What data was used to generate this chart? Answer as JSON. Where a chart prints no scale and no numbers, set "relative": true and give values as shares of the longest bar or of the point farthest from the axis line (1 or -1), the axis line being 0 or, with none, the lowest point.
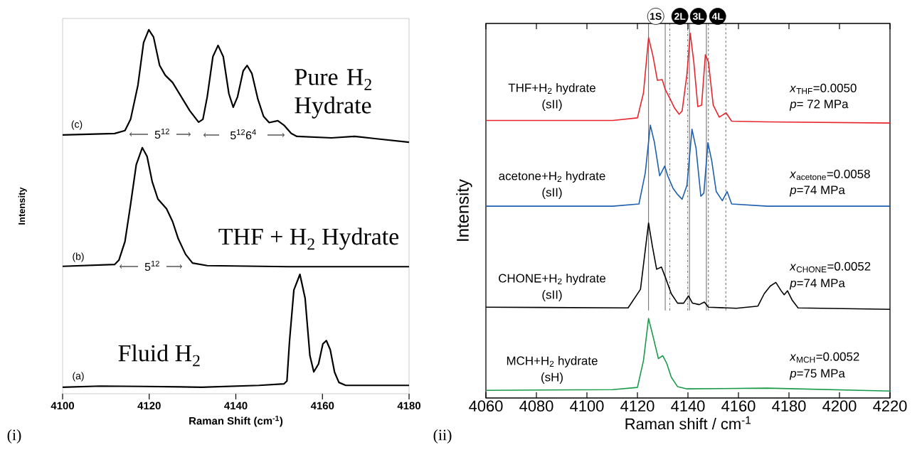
{
  "chart_data": [
    {
      "type": "line",
      "relative": true,
      "xlim": [
        4100,
        4180
      ],
      "xticks": [
        4100,
        4120,
        4140,
        4160,
        4180
      ],
      "xlabel": "Raman Shift (cm$^{-1}$)",
      "ylabel": "Intensity",
      "series": [
        {
          "name": "Pure H$_{2}$ Hydrate",
          "color": "#000000",
          "x": [
            4100,
            4112.0,
            4114.4,
            4115.7,
            4117.4,
            4118.7,
            4119.9,
            4121.0,
            4122.4,
            4123.7,
            4125.4,
            4127.4,
            4129.4,
            4131.4,
            4132.4,
            4133.4,
            4134.7,
            4135.9,
            4137.1,
            4138.4,
            4139.4,
            4140.4,
            4141.7,
            4142.6,
            4143.7,
            4145.1,
            4146.4,
            4147.7,
            4149.7,
            4151.1,
            4152.8,
            4154.1,
            4162.1,
            4167.4,
            4172.1,
            4180
          ],
          "values": [
            0.711,
            0.715,
            0.723,
            0.754,
            0.848,
            0.965,
            1.0,
            0.98,
            0.902,
            0.875,
            0.855,
            0.816,
            0.777,
            0.746,
            0.754,
            0.816,
            0.926,
            0.957,
            0.926,
            0.824,
            0.787,
            0.816,
            0.887,
            0.902,
            0.88,
            0.809,
            0.762,
            0.745,
            0.75,
            0.738,
            0.715,
            0.707,
            0.703,
            0.707,
            0.701,
            0.691
          ]
        },
        {
          "name": "THF + H$_{2}$ Hydrate",
          "color": "#000000",
          "x": [
            4100,
            4112.0,
            4113.0,
            4114.4,
            4115.7,
            4117.0,
            4118.4,
            4119.5,
            4120.7,
            4122.0,
            4124.0,
            4125.4,
            4126.7,
            4128.4,
            4130.0,
            4133.4,
            4152.1,
            4180
          ],
          "values": [
            0.35,
            0.355,
            0.367,
            0.418,
            0.52,
            0.629,
            0.676,
            0.652,
            0.582,
            0.535,
            0.508,
            0.473,
            0.426,
            0.383,
            0.359,
            0.352,
            0.349,
            0.349
          ]
        },
        {
          "name": "Fluid H$_{2}$",
          "color": "#000000",
          "x": [
            4100,
            4108.7,
            4118.7,
            4132.1,
            4145.4,
            4151.1,
            4151.8,
            4152.4,
            4153.4,
            4154.8,
            4156.0,
            4157.1,
            4158.0,
            4159.1,
            4160.1,
            4160.9,
            4161.8,
            4162.8,
            4163.8,
            4165.4,
            4180
          ],
          "values": [
            0.018,
            0.021,
            0.02,
            0.018,
            0.023,
            0.027,
            0.035,
            0.145,
            0.285,
            0.328,
            0.262,
            0.105,
            0.06,
            0.082,
            0.137,
            0.146,
            0.121,
            0.059,
            0.031,
            0.023,
            0.023
          ]
        }
      ],
      "annotations": [
        "(c)",
        "(b)",
        "(a)",
        "5$^{12}$",
        "5$^{12}$6$^{4}$",
        "5$^{12}$",
        "(i)"
      ]
    },
    {
      "type": "line",
      "relative": true,
      "xlim": [
        4060,
        4220
      ],
      "xticks": [
        4060,
        4080,
        4100,
        4120,
        4140,
        4160,
        4180,
        4200,
        4220
      ],
      "xlabel": "Raman shift / cm$^{-1}$",
      "ylabel": "Intensity",
      "series": [
        {
          "name": "THF+H$_{2}$ hydrate",
          "color": "#e8262d",
          "x": [
            4060,
            4110.2,
            4120.0,
            4122.4,
            4124.4,
            4126.1,
            4127.9,
            4129.8,
            4131.0,
            4132.8,
            4134.7,
            4136.5,
            4137.7,
            4139.6,
            4140.9,
            4142.3,
            4143.9,
            4145.4,
            4146.9,
            4148.1,
            4150.0,
            4152.4,
            4155.1,
            4157.3,
            4171.4,
            4220
          ],
          "values": [
            0.761,
            0.761,
            0.768,
            0.837,
            0.988,
            0.939,
            0.871,
            0.873,
            0.846,
            0.822,
            0.795,
            0.778,
            0.787,
            0.888,
            1.0,
            0.922,
            0.799,
            0.803,
            0.941,
            0.922,
            0.803,
            0.77,
            0.782,
            0.759,
            0.757,
            0.754
          ]
        },
        {
          "name": "acetone+H$_{2}$ hydrate",
          "color": "#1f5fad",
          "x": [
            4060,
            4110.2,
            4120.6,
            4123.1,
            4125.1,
            4126.7,
            4128.8,
            4130.8,
            4132.0,
            4134.1,
            4135.9,
            4137.7,
            4139.6,
            4141.6,
            4143.2,
            4145.1,
            4146.3,
            4147.9,
            4149.4,
            4151.2,
            4153.6,
            4155.5,
            4157.3,
            4171.4,
            4220
          ],
          "values": [
            0.526,
            0.526,
            0.532,
            0.617,
            0.748,
            0.702,
            0.609,
            0.636,
            0.609,
            0.575,
            0.558,
            0.545,
            0.583,
            0.737,
            0.685,
            0.553,
            0.562,
            0.7,
            0.651,
            0.566,
            0.541,
            0.566,
            0.532,
            0.526,
            0.526
          ]
        },
        {
          "name": "CHONE+H$_{2}$ hydrate",
          "color": "#000000",
          "x": [
            4060,
            4116.3,
            4121.2,
            4123.0,
            4124.4,
            4125.9,
            4127.6,
            4129.5,
            4131.0,
            4133.4,
            4135.9,
            4138.3,
            4140.2,
            4141.8,
            4144.5,
            4146.5,
            4148.1,
            4159.2,
            4167.7,
            4170.2,
            4172.6,
            4174.8,
            4176.9,
            4178.1,
            4179.4,
            4181.2,
            4183.6,
            4220
          ],
          "values": [
            0.249,
            0.247,
            0.298,
            0.4,
            0.48,
            0.417,
            0.353,
            0.359,
            0.332,
            0.286,
            0.26,
            0.26,
            0.28,
            0.26,
            0.256,
            0.263,
            0.249,
            0.246,
            0.252,
            0.286,
            0.307,
            0.317,
            0.294,
            0.283,
            0.294,
            0.269,
            0.247,
            0.243
          ]
        },
        {
          "name": "MCH+H$_{2}$ hydrate",
          "color": "#1a9a4a",
          "x": [
            4060,
            4110.2,
            4120.0,
            4122.4,
            4124.4,
            4126.1,
            4128.3,
            4130.0,
            4131.6,
            4133.4,
            4135.9,
            4139.6,
            4171.4,
            4220
          ],
          "values": [
            0.021,
            0.023,
            0.029,
            0.103,
            0.218,
            0.171,
            0.108,
            0.116,
            0.095,
            0.057,
            0.031,
            0.025,
            0.027,
            0.019
          ]
        }
      ],
      "ref_lines": [
        {
          "axis": "x",
          "value": 4124.4,
          "line_style": "solid"
        },
        {
          "axis": "x",
          "value": 4131.0,
          "line_style": "solid"
        },
        {
          "axis": "x",
          "value": 4132.8,
          "line_style": "dashdot"
        },
        {
          "axis": "x",
          "value": 4139.9,
          "line_style": "dashdot"
        },
        {
          "axis": "x",
          "value": 4140.6,
          "line_style": "solid"
        },
        {
          "axis": "x",
          "value": 4147.3,
          "line_style": "solid"
        },
        {
          "axis": "x",
          "value": 4148.1,
          "line_style": "dashed"
        },
        {
          "axis": "x",
          "value": 4155.0,
          "line_style": "dashed"
        }
      ],
      "annotations": [
        "1S",
        "2L",
        "3L",
        "4L",
        "(sII)",
        "(sII)",
        "(sII)",
        "(sH)",
        "*x*$_{THF}$=0.0050",
        "*p*= 72 MPa",
        "*x*$_{acetone}$=0.0058",
        "*p*=74 MPa",
        "*x*$_{CHONE}$=0.0052",
        "*p*=74 MPa",
        "*x*$_{MCH}$=0.0052",
        "*p*=75 MPa",
        "(ii)"
      ]
    }
  ]
}
